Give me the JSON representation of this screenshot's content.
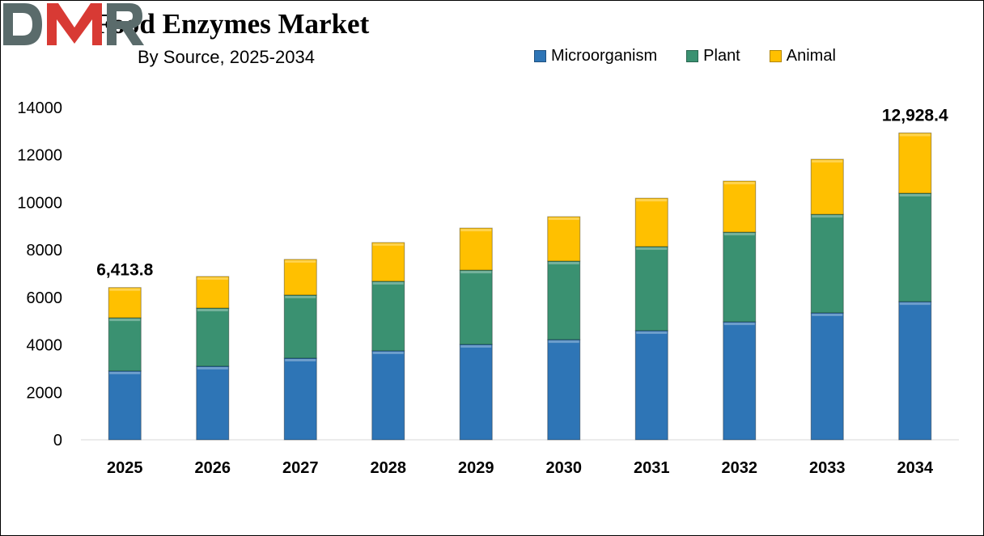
{
  "chart_data": {
    "type": "bar",
    "stacked": true,
    "title": "Food Enzymes Market",
    "subtitle": "By Source, 2025-2034",
    "xlabel": "",
    "ylabel": "",
    "categories": [
      "2025",
      "2026",
      "2027",
      "2028",
      "2029",
      "2030",
      "2031",
      "2032",
      "2033",
      "2034"
    ],
    "series": [
      {
        "name": "Microorganism",
        "color": "#2E75B6",
        "values": [
          2900,
          3100,
          3440,
          3750,
          4020,
          4220,
          4600,
          4970,
          5350,
          5820
        ]
      },
      {
        "name": "Plant",
        "color": "#3A9171",
        "values": [
          2240,
          2450,
          2660,
          2930,
          3130,
          3310,
          3540,
          3780,
          4150,
          4570
        ]
      },
      {
        "name": "Animal",
        "color": "#FFC000",
        "values": [
          1274,
          1330,
          1500,
          1630,
          1770,
          1870,
          2040,
          2150,
          2320,
          2538
        ]
      }
    ],
    "ylim": [
      0,
      14000
    ],
    "yticks": [
      "0",
      "2000",
      "4000",
      "6000",
      "8000",
      "10000",
      "12000",
      "14000"
    ],
    "grid": false,
    "legend_position": "top-right",
    "annotations": [
      {
        "category": "2025",
        "text": "6,413.8"
      },
      {
        "category": "2034",
        "text": "12,928.4"
      }
    ]
  },
  "logo": {
    "text": "DMR",
    "color_d": "#5a6b6b",
    "color_m": "#d83a34",
    "color_r": "#5a6b6b"
  }
}
